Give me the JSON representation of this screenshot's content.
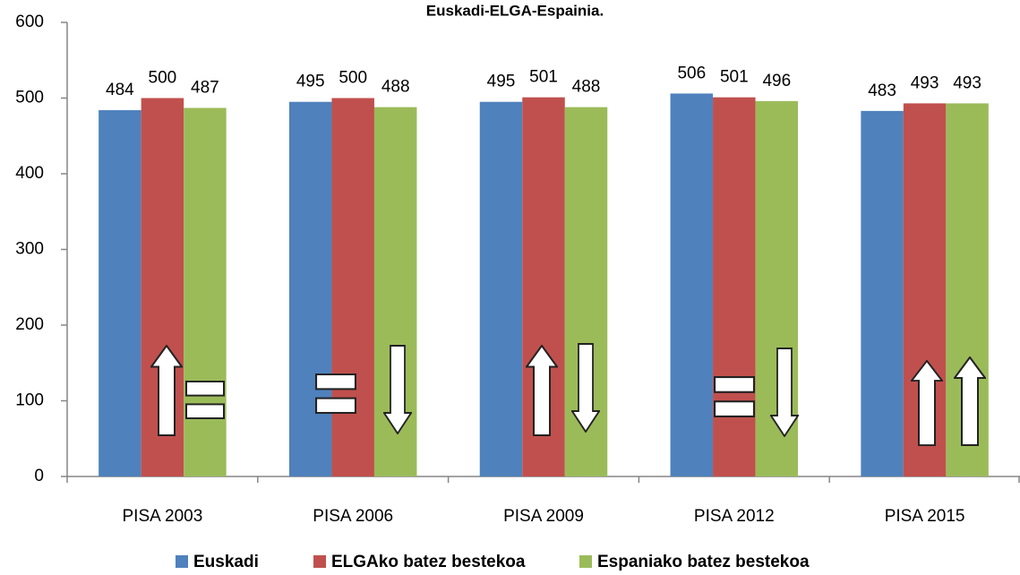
{
  "chart_data": {
    "type": "bar",
    "title": "Euskadi-ELGA-Espainia.",
    "categories": [
      "PISA 2003",
      "PISA 2006",
      "PISA 2009",
      "PISA 2012",
      "PISA 2015"
    ],
    "series": [
      {
        "name": "Euskadi",
        "color": "#4f81bd",
        "values": [
          484,
          495,
          495,
          506,
          483
        ]
      },
      {
        "name": "ELGAko batez bestekoa",
        "color": "#c0504d",
        "values": [
          500,
          500,
          501,
          501,
          493
        ]
      },
      {
        "name": "Espaniako batez bestekoa",
        "color": "#9bbb59",
        "values": [
          487,
          488,
          488,
          496,
          493
        ]
      }
    ],
    "ylim": [
      0,
      600
    ],
    "yticks": [
      0,
      100,
      200,
      300,
      400,
      500,
      600
    ],
    "grid": false,
    "legend": "bottom"
  }
}
